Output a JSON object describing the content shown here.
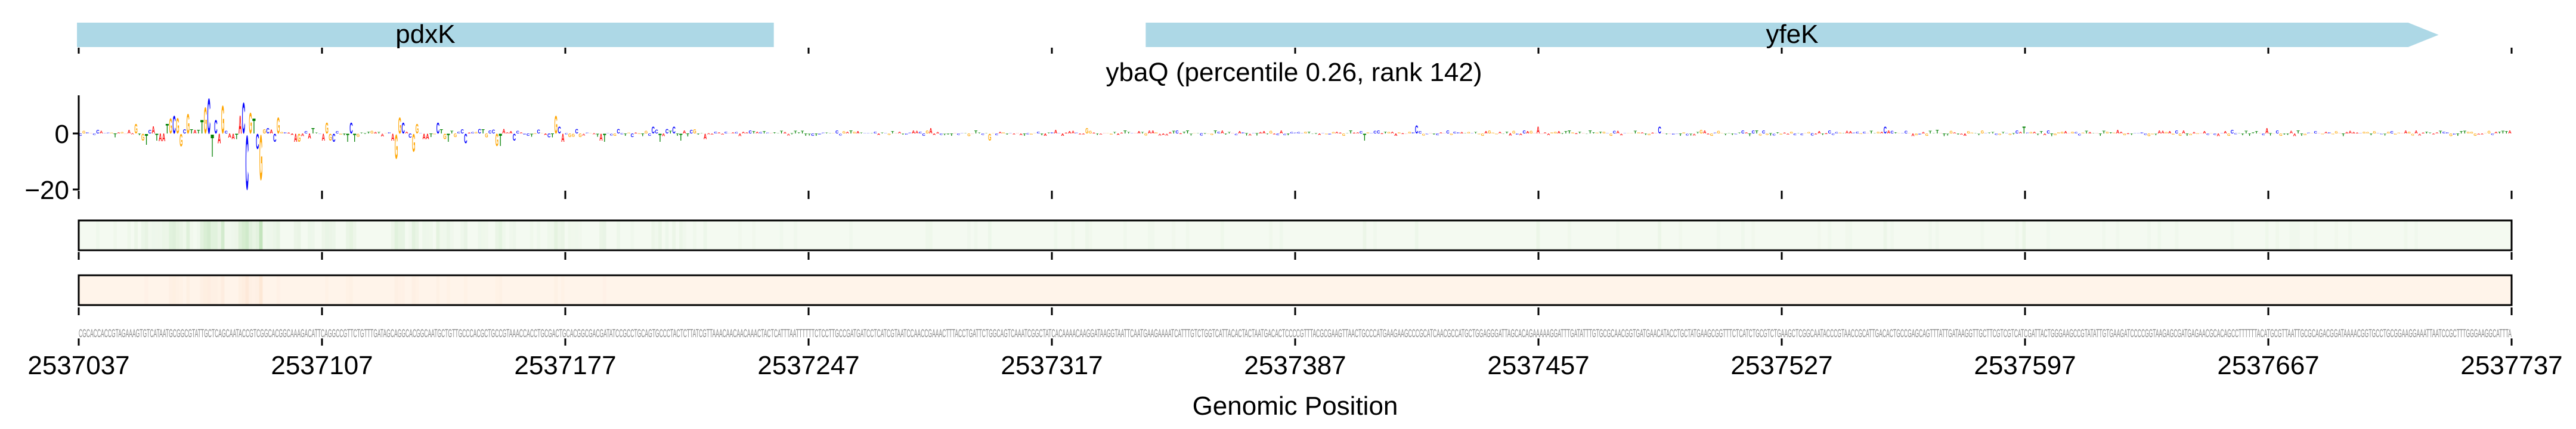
{
  "chart_data": {
    "type": "sequence-logo",
    "title": "ybaQ (percentile 0.26, rank 142)",
    "xlabel": "Genomic Position",
    "xlim": [
      2537037,
      2537737
    ],
    "xticks": [
      "2537037",
      "2537107",
      "2537177",
      "2537247",
      "2537317",
      "2537387",
      "2537457",
      "2537527",
      "2537597",
      "2537667",
      "2537737"
    ],
    "xtick_values": [
      2537037,
      2537107,
      2537177,
      2537247,
      2537317,
      2537387,
      2537457,
      2537527,
      2537597,
      2537667,
      2537737
    ],
    "logo_ylim": [
      -20,
      13
    ],
    "logo_yticks": [
      {
        "value": 0,
        "label": "0"
      },
      {
        "value": -20,
        "label": "−20"
      }
    ],
    "genes": [
      {
        "name": "pdxK",
        "start": 2537036.5,
        "end": 2537237,
        "arrow": false
      },
      {
        "name": "yfeK",
        "start": 2537344,
        "end": 2537716,
        "arrow": true
      }
    ],
    "base_colors": {
      "A": "#ff0000",
      "C": "#0000ff",
      "G": "#ffa500",
      "T": "#008000"
    },
    "gene_color": "#add8e6",
    "track_colors": {
      "green_bg": "#f4faf1",
      "green_mark": "#a8d8a0",
      "orange_bg": "#fff4ea",
      "orange_mark": "#f6c8a0"
    },
    "sequence": "CGCACCACCGTAGAAAGTGTCATAATGCGGCGTATTGCTCAGCAATACCGTCGGCACGGCAAAGACATTCAGGCCGTTCTGTTTGATAGCAGGCACGGCAATGCTGTTGCCCACGCTGCCGTAAACCACCTGCGACTGCACGGCGACGATATCCGCCTGCAGTGCCCTACTCTTATCGTTAAACAACAACAAACTACTCATTTAATTTTTTCTCCTTGCCGATGATCCTCATCGTAATCCAACCGAAACTTTACCTGATTCTGGCAGTCAAATCGGCTATCACAAAACAAGGATAAGGTAATTCAATGAAGAAAATCATTTGTCTGGTCATTACACTACTAATGACACTCCCCGTTTACGCGAAGTTAACTGCCCATGAAGAAGCCCGCATCAACGCCATGCTGGAGGGATTAGCACAGAAAAAGGATTTGATATTTGTGCGCAACGGTGATGAACATACCTGCTATGAAGCGGTTTCTCATCTGCGTCTGAAGCTCGGCAATACCCGTAACCGCATTGACACTGCCGAGCAGTTTATTGATAAGGTTGCTTCGTCGTCATCGATTACTGGGAAGCCGTATATTGTGAAGATCCCCGGTAAGAGCGATGAGAACGCACAGCCTTTTTTACATGCGTTAATTGCGCAGACGGATAAAACGGTGCCTGCGGAAGGAAATTAATCCGCTTTGGGAAGGCATTTA",
    "logo_peaks": [
      [
        16,
        3.6
      ],
      [
        18,
        -2.5
      ],
      [
        19,
        -4
      ],
      [
        21,
        2.7
      ],
      [
        22,
        -2.5
      ],
      [
        23,
        -2.8
      ],
      [
        24,
        -2.8
      ],
      [
        25,
        3.5
      ],
      [
        26,
        5.5
      ],
      [
        27,
        6.5
      ],
      [
        28,
        5.7
      ],
      [
        29,
        -4.6
      ],
      [
        30,
        1.5
      ],
      [
        31,
        7.2
      ],
      [
        32,
        1.5
      ],
      [
        33,
        1.2
      ],
      [
        34,
        1.2
      ],
      [
        35,
        5
      ],
      [
        36,
        9.7
      ],
      [
        37,
        13
      ],
      [
        38,
        -8.3
      ],
      [
        39,
        5
      ],
      [
        40,
        -3.5
      ],
      [
        41,
        10.2
      ],
      [
        42,
        1
      ],
      [
        43,
        -1.5
      ],
      [
        44,
        -2
      ],
      [
        45,
        -2
      ],
      [
        46,
        6.6
      ],
      [
        47,
        11.3
      ],
      [
        48,
        -20
      ],
      [
        49,
        7.6
      ],
      [
        50,
        5.5
      ],
      [
        51,
        -5.5
      ],
      [
        52,
        -16.6
      ],
      [
        53,
        1.5
      ],
      [
        54,
        2
      ],
      [
        56,
        -3
      ],
      [
        57,
        6
      ],
      [
        62,
        -3
      ],
      [
        63,
        -3
      ],
      [
        66,
        -1.8
      ],
      [
        67,
        2
      ],
      [
        70,
        -2.6
      ],
      [
        71,
        4
      ],
      [
        72,
        -2.5
      ],
      [
        73,
        -3
      ],
      [
        77,
        -3
      ],
      [
        78,
        4
      ],
      [
        79,
        -3
      ],
      [
        90,
        -2.5
      ],
      [
        91,
        -9
      ],
      [
        92,
        6
      ],
      [
        93,
        4
      ],
      [
        95,
        -1.5
      ],
      [
        96,
        -6.5
      ],
      [
        97,
        3.5
      ],
      [
        99,
        -2
      ],
      [
        100,
        -2
      ],
      [
        103,
        4
      ],
      [
        104,
        1.5
      ],
      [
        105,
        -2
      ],
      [
        106,
        -3
      ],
      [
        111,
        -3.5
      ],
      [
        120,
        -4.5
      ],
      [
        121,
        -4.5
      ],
      [
        125,
        -2.5
      ],
      [
        137,
        6.5
      ],
      [
        138,
        2.5
      ],
      [
        139,
        -3
      ],
      [
        150,
        -2.5
      ],
      [
        151,
        -3
      ],
      [
        165,
        2.5
      ],
      [
        167,
        -3
      ],
      [
        171,
        2.5
      ],
      [
        173,
        -2.5
      ],
      [
        180,
        -2
      ],
      [
        245,
        2
      ],
      [
        262,
        -2.5
      ],
      [
        290,
        2
      ],
      [
        370,
        -2.5
      ],
      [
        385,
        3
      ],
      [
        420,
        2.5
      ],
      [
        455,
        2.5
      ],
      [
        520,
        2.5
      ],
      [
        560,
        2.5
      ],
      [
        630,
        2
      ]
    ]
  }
}
